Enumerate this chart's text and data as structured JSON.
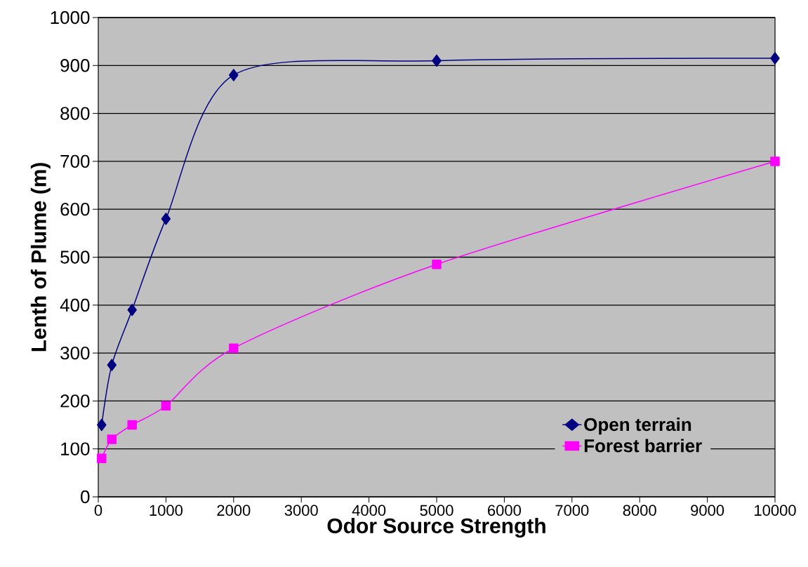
{
  "chart_data": {
    "type": "line",
    "xlabel": "Odor Source Strength",
    "ylabel": "Lenth of Plume (m)",
    "x": [
      50,
      200,
      500,
      1000,
      2000,
      5000,
      10000
    ],
    "series": [
      {
        "name": "Open terrain",
        "color": "#000080",
        "marker": "diamond",
        "values": [
          150,
          275,
          390,
          580,
          880,
          910,
          915
        ]
      },
      {
        "name": "Forest barrier",
        "color": "#ff00ff",
        "marker": "square",
        "values": [
          80,
          120,
          150,
          190,
          310,
          485,
          700
        ]
      }
    ],
    "xlim": [
      0,
      10000
    ],
    "ylim": [
      0,
      1000
    ],
    "xticks": [
      0,
      1000,
      2000,
      3000,
      4000,
      5000,
      6000,
      7000,
      8000,
      9000,
      10000
    ],
    "yticks": [
      0,
      100,
      200,
      300,
      400,
      500,
      600,
      700,
      800,
      900,
      1000
    ],
    "grid": "y",
    "legend": "bottom right",
    "line_style": "solid"
  }
}
